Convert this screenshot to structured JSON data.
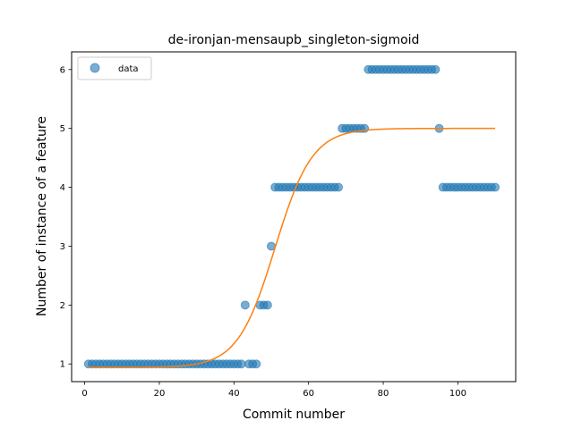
{
  "chart_data": {
    "type": "scatter",
    "title": "de-ironjan-mensaupb_singleton-sigmoid",
    "xlabel": "Commit number",
    "ylabel": "Number of instance of a feature",
    "xlim": [
      -3.5,
      115.5
    ],
    "ylim": [
      0.7,
      6.3
    ],
    "xticks": [
      0,
      20,
      40,
      60,
      80,
      100
    ],
    "yticks": [
      1,
      2,
      3,
      4,
      5,
      6
    ],
    "grid": false,
    "legend": {
      "position": "top-left",
      "entries": [
        "data"
      ]
    },
    "colors": {
      "data": "#1f77b4",
      "fit": "#ff7f0e"
    },
    "series": [
      {
        "name": "data",
        "kind": "scatter",
        "x": [
          1,
          2,
          3,
          4,
          5,
          6,
          7,
          8,
          9,
          10,
          11,
          12,
          13,
          14,
          15,
          16,
          17,
          18,
          19,
          20,
          21,
          22,
          23,
          24,
          25,
          26,
          27,
          28,
          29,
          30,
          31,
          32,
          33,
          34,
          35,
          36,
          37,
          38,
          39,
          40,
          41,
          42,
          43,
          44,
          45,
          46,
          47,
          48,
          49,
          50,
          51,
          52,
          53,
          54,
          55,
          56,
          57,
          58,
          59,
          60,
          61,
          62,
          63,
          64,
          65,
          66,
          67,
          68,
          69,
          70,
          71,
          72,
          73,
          74,
          75,
          76,
          77,
          78,
          79,
          80,
          81,
          82,
          83,
          84,
          85,
          86,
          87,
          88,
          89,
          90,
          91,
          92,
          93,
          94,
          95,
          96,
          97,
          98,
          99,
          100,
          101,
          102,
          103,
          104,
          105,
          106,
          107,
          108,
          109,
          110
        ],
        "y": [
          1,
          1,
          1,
          1,
          1,
          1,
          1,
          1,
          1,
          1,
          1,
          1,
          1,
          1,
          1,
          1,
          1,
          1,
          1,
          1,
          1,
          1,
          1,
          1,
          1,
          1,
          1,
          1,
          1,
          1,
          1,
          1,
          1,
          1,
          1,
          1,
          1,
          1,
          1,
          1,
          1,
          1,
          2,
          1,
          1,
          1,
          2,
          2,
          2,
          3,
          4,
          4,
          4,
          4,
          4,
          4,
          4,
          4,
          4,
          4,
          4,
          4,
          4,
          4,
          4,
          4,
          4,
          4,
          5,
          5,
          5,
          5,
          5,
          5,
          5,
          6,
          6,
          6,
          6,
          6,
          6,
          6,
          6,
          6,
          6,
          6,
          6,
          6,
          6,
          6,
          6,
          6,
          6,
          6,
          5,
          4,
          4,
          4,
          4,
          4,
          4,
          4,
          4,
          4,
          4,
          4,
          4,
          4,
          4,
          4
        ]
      },
      {
        "name": "",
        "kind": "sigmoid",
        "L": 4.06,
        "x0": 51.0,
        "k": 0.2,
        "b": 0.94,
        "x_range": [
          1,
          110
        ]
      }
    ]
  }
}
